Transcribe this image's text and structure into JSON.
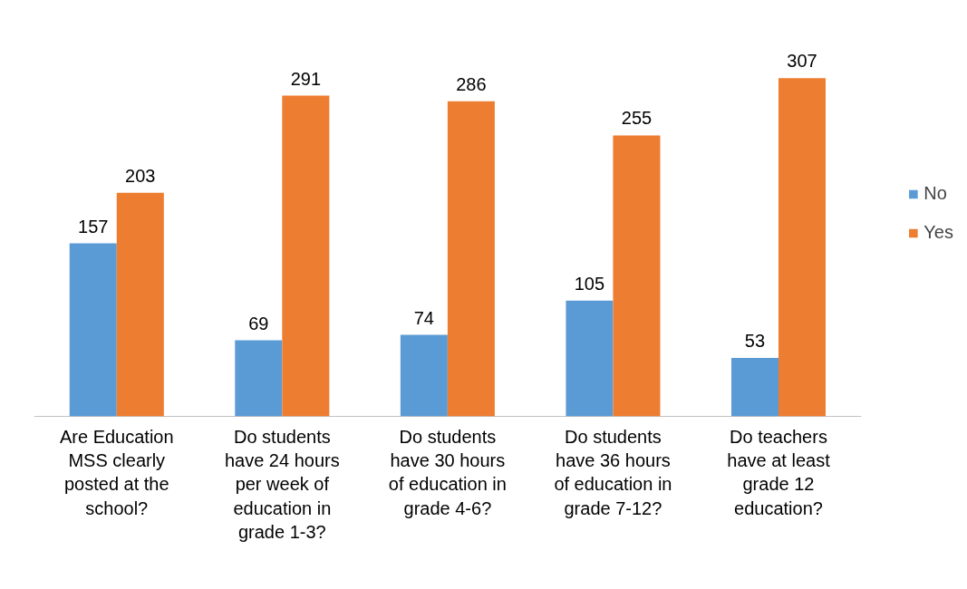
{
  "chart_data": {
    "type": "bar",
    "categories": [
      "Are Education MSS clearly posted at the school?",
      "Do students have 24 hours per week of education in grade 1-3?",
      "Do students have 30 hours of education in grade 4-6?",
      "Do students have 36 hours of education in grade 7-12?",
      "Do teachers have at least grade 12 education?"
    ],
    "series": [
      {
        "name": "No",
        "color": "#5b9bd5",
        "values": [
          157,
          69,
          74,
          105,
          53
        ]
      },
      {
        "name": "Yes",
        "color": "#ed7d31",
        "values": [
          203,
          291,
          286,
          255,
          307
        ]
      }
    ],
    "data_labels": true,
    "legend": "right",
    "grid": false
  }
}
